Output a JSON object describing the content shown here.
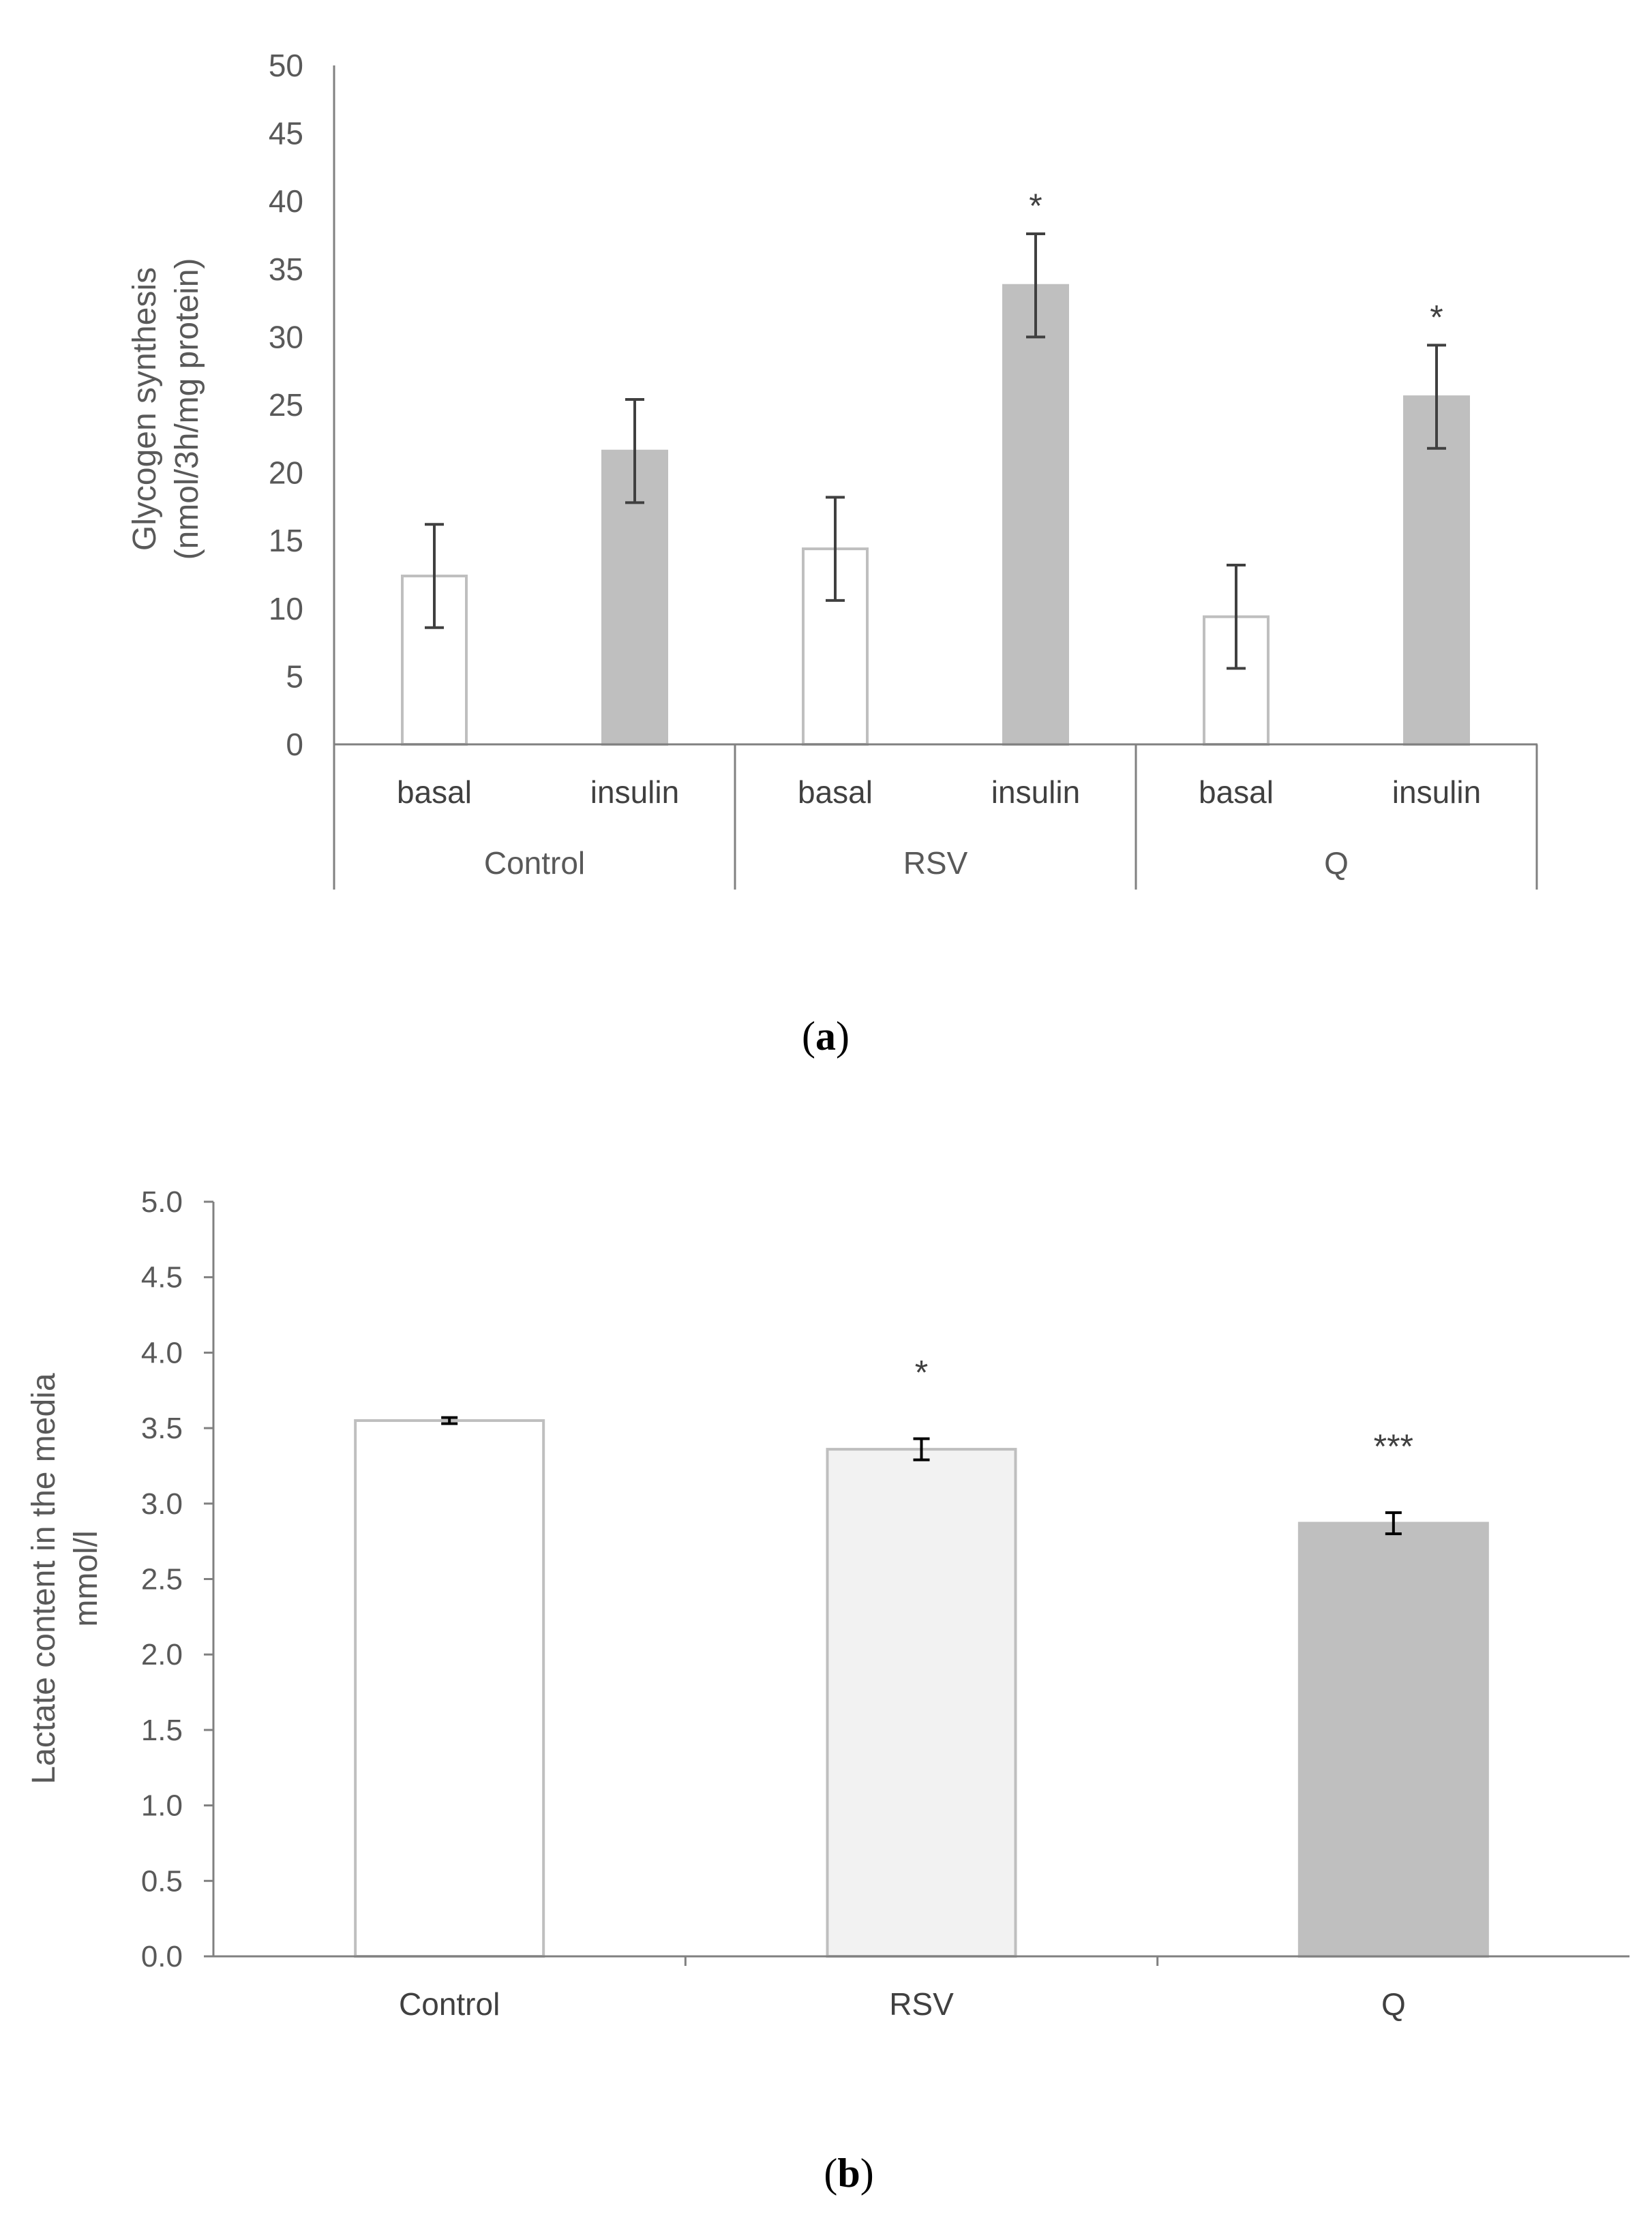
{
  "chart_data": [
    {
      "type": "bar",
      "panel": "a",
      "caption_letter": "a",
      "ylabel_lines": [
        "Glycogen synthesis",
        "(nmol/3h/mg protein)"
      ],
      "ylim": [
        0,
        50
      ],
      "yticks": [
        "0",
        "5",
        "10",
        "15",
        "20",
        "25",
        "30",
        "35",
        "40",
        "45",
        "50"
      ],
      "groups": [
        "Control",
        "RSV",
        "Q"
      ],
      "bars": [
        {
          "group": "Control",
          "label": "basal",
          "value": 12.4,
          "error": 3.8,
          "sig": "",
          "fill": "#ffffff",
          "stroke": "#bfbfbf"
        },
        {
          "group": "Control",
          "label": "insulin",
          "value": 21.6,
          "error": 3.8,
          "sig": "",
          "fill": "#bfbfbf",
          "stroke": "#bfbfbf"
        },
        {
          "group": "RSV",
          "label": "basal",
          "value": 14.4,
          "error": 3.8,
          "sig": "",
          "fill": "#ffffff",
          "stroke": "#bfbfbf"
        },
        {
          "group": "RSV",
          "label": "insulin",
          "value": 33.8,
          "error": 3.8,
          "sig": "*",
          "fill": "#bfbfbf",
          "stroke": "#bfbfbf"
        },
        {
          "group": "Q",
          "label": "basal",
          "value": 9.4,
          "error": 3.8,
          "sig": "",
          "fill": "#ffffff",
          "stroke": "#bfbfbf"
        },
        {
          "group": "Q",
          "label": "insulin",
          "value": 25.6,
          "error": 3.8,
          "sig": "*",
          "fill": "#bfbfbf",
          "stroke": "#bfbfbf"
        }
      ]
    },
    {
      "type": "bar",
      "panel": "b",
      "caption_letter": "b",
      "ylabel_lines": [
        "Lactate content in the media",
        "mmol/l"
      ],
      "ylim": [
        0,
        5
      ],
      "yticks": [
        "0.0",
        "0.5",
        "1.0",
        "1.5",
        "2.0",
        "2.5",
        "3.0",
        "3.5",
        "4.0",
        "4.5",
        "5.0"
      ],
      "bars": [
        {
          "label": "Control",
          "value": 3.55,
          "error": 0.02,
          "sig": "",
          "fill": "#ffffff",
          "stroke": "#bfbfbf"
        },
        {
          "label": "RSV",
          "value": 3.36,
          "error": 0.07,
          "sig": "*",
          "fill": "#f2f2f2",
          "stroke": "#bfbfbf"
        },
        {
          "label": "Q",
          "value": 2.87,
          "error": 0.07,
          "sig": "***",
          "fill": "#bfbfbf",
          "stroke": "#bfbfbf"
        }
      ]
    }
  ]
}
